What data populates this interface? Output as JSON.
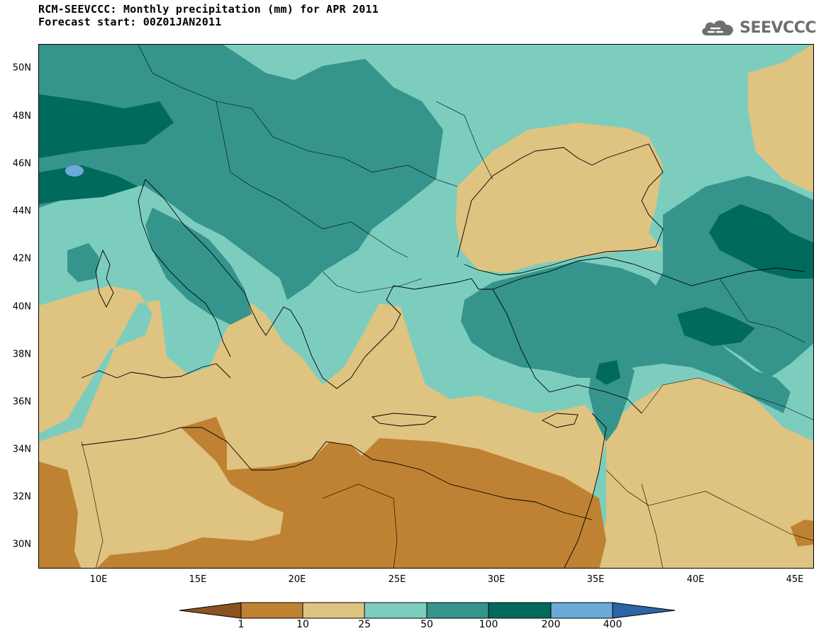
{
  "header": {
    "title_line1": "RCM-SEEVCCC: Monthly precipitation (mm) for APR 2011",
    "title_line2": "Forecast start: 00Z01JAN2011",
    "logo_text": "SEEVCCC",
    "logo_icon": "cloud-icon"
  },
  "map": {
    "projection": "lat-lon",
    "lon_range": [
      7,
      46
    ],
    "lat_range": [
      29,
      51
    ],
    "lat_ticks": [
      "30N",
      "32N",
      "34N",
      "36N",
      "38N",
      "40N",
      "42N",
      "44N",
      "46N",
      "48N",
      "50N"
    ],
    "lon_ticks": [
      "10E",
      "15E",
      "20E",
      "25E",
      "30E",
      "35E",
      "40E",
      "45E"
    ],
    "variable": "Monthly precipitation",
    "units": "mm"
  },
  "legend": {
    "levels": [
      "1",
      "10",
      "25",
      "50",
      "100",
      "200",
      "400"
    ],
    "colors": [
      "#8a5420",
      "#bf8232",
      "#dfc380",
      "#7dcdbf",
      "#35958c",
      "#006a5c",
      "#6aaad8",
      "#2c64a4"
    ]
  },
  "colors": {
    "land_dry": "#bf8232",
    "land_moderate": "#dfc380",
    "wet_low": "#7dcdbf",
    "wet_mid": "#35958c",
    "wet_high": "#006a5c",
    "wettest": "#6aaad8",
    "logo": "#6f6f6f"
  }
}
